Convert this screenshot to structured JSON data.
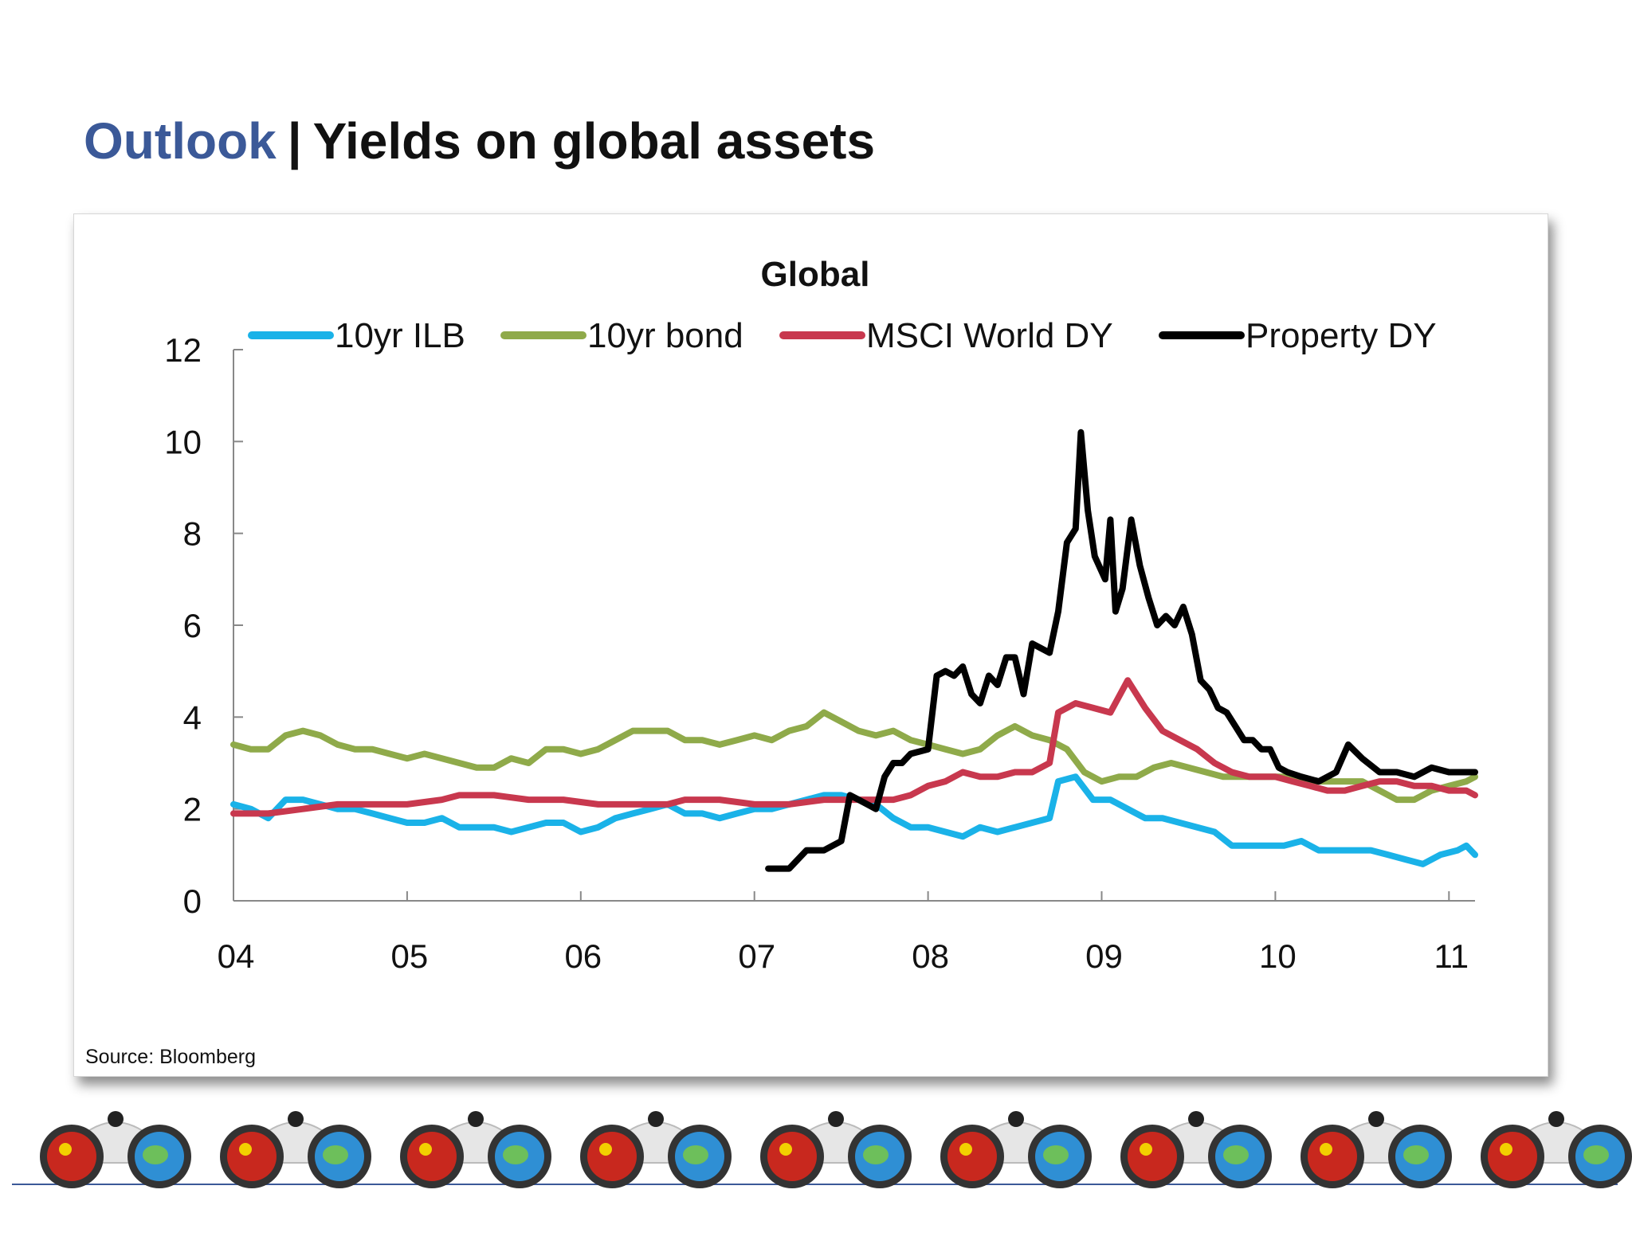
{
  "header": {
    "section": "Outlook",
    "separator": "|",
    "title": "Yields on global assets"
  },
  "source_note": "Source: Bloomberg",
  "footer": {
    "icon_count": 9,
    "icon_name": "binoculars-icon"
  },
  "colors": {
    "accent": "#3b5998",
    "ilb": "#1ab2e8",
    "bond": "#8faa4a",
    "msci": "#c8384e",
    "property": "#000000"
  },
  "chart_data": {
    "type": "line",
    "title": "Global",
    "xlabel": "",
    "ylabel": "",
    "x_tick_labels": [
      "04",
      "05",
      "06",
      "07",
      "08",
      "09",
      "10",
      "11"
    ],
    "x_ticks": [
      2004,
      2005,
      2006,
      2007,
      2008,
      2009,
      2010,
      2011
    ],
    "xlim": [
      2004,
      2011.15
    ],
    "ylim": [
      0,
      12
    ],
    "y_ticks": [
      0,
      2,
      4,
      6,
      8,
      10,
      12
    ],
    "legend_position": "top",
    "grid": false,
    "series": [
      {
        "name": "10yr ILB",
        "color": "#1ab2e8",
        "points": [
          [
            2004.0,
            2.1
          ],
          [
            2004.1,
            2.0
          ],
          [
            2004.2,
            1.8
          ],
          [
            2004.3,
            2.2
          ],
          [
            2004.4,
            2.2
          ],
          [
            2004.5,
            2.1
          ],
          [
            2004.6,
            2.0
          ],
          [
            2004.7,
            2.0
          ],
          [
            2004.8,
            1.9
          ],
          [
            2004.9,
            1.8
          ],
          [
            2005.0,
            1.7
          ],
          [
            2005.1,
            1.7
          ],
          [
            2005.2,
            1.8
          ],
          [
            2005.3,
            1.6
          ],
          [
            2005.4,
            1.6
          ],
          [
            2005.5,
            1.6
          ],
          [
            2005.6,
            1.5
          ],
          [
            2005.7,
            1.6
          ],
          [
            2005.8,
            1.7
          ],
          [
            2005.9,
            1.7
          ],
          [
            2006.0,
            1.5
          ],
          [
            2006.1,
            1.6
          ],
          [
            2006.2,
            1.8
          ],
          [
            2006.3,
            1.9
          ],
          [
            2006.4,
            2.0
          ],
          [
            2006.5,
            2.1
          ],
          [
            2006.6,
            1.9
          ],
          [
            2006.7,
            1.9
          ],
          [
            2006.8,
            1.8
          ],
          [
            2006.9,
            1.9
          ],
          [
            2007.0,
            2.0
          ],
          [
            2007.1,
            2.0
          ],
          [
            2007.2,
            2.1
          ],
          [
            2007.3,
            2.2
          ],
          [
            2007.4,
            2.3
          ],
          [
            2007.5,
            2.3
          ],
          [
            2007.6,
            2.2
          ],
          [
            2007.7,
            2.1
          ],
          [
            2007.8,
            1.8
          ],
          [
            2007.9,
            1.6
          ],
          [
            2008.0,
            1.6
          ],
          [
            2008.1,
            1.5
          ],
          [
            2008.2,
            1.4
          ],
          [
            2008.3,
            1.6
          ],
          [
            2008.4,
            1.5
          ],
          [
            2008.5,
            1.6
          ],
          [
            2008.6,
            1.7
          ],
          [
            2008.7,
            1.8
          ],
          [
            2008.75,
            2.6
          ],
          [
            2008.85,
            2.7
          ],
          [
            2008.95,
            2.2
          ],
          [
            2009.05,
            2.2
          ],
          [
            2009.15,
            2.0
          ],
          [
            2009.25,
            1.8
          ],
          [
            2009.35,
            1.8
          ],
          [
            2009.45,
            1.7
          ],
          [
            2009.55,
            1.6
          ],
          [
            2009.65,
            1.5
          ],
          [
            2009.75,
            1.2
          ],
          [
            2009.85,
            1.2
          ],
          [
            2009.95,
            1.2
          ],
          [
            2010.05,
            1.2
          ],
          [
            2010.15,
            1.3
          ],
          [
            2010.25,
            1.1
          ],
          [
            2010.35,
            1.1
          ],
          [
            2010.45,
            1.1
          ],
          [
            2010.55,
            1.1
          ],
          [
            2010.65,
            1.0
          ],
          [
            2010.75,
            0.9
          ],
          [
            2010.85,
            0.8
          ],
          [
            2010.95,
            1.0
          ],
          [
            2011.05,
            1.1
          ],
          [
            2011.1,
            1.2
          ],
          [
            2011.15,
            1.0
          ]
        ]
      },
      {
        "name": "10yr bond",
        "color": "#8faa4a",
        "points": [
          [
            2004.0,
            3.4
          ],
          [
            2004.1,
            3.3
          ],
          [
            2004.2,
            3.3
          ],
          [
            2004.3,
            3.6
          ],
          [
            2004.4,
            3.7
          ],
          [
            2004.5,
            3.6
          ],
          [
            2004.6,
            3.4
          ],
          [
            2004.7,
            3.3
          ],
          [
            2004.8,
            3.3
          ],
          [
            2004.9,
            3.2
          ],
          [
            2005.0,
            3.1
          ],
          [
            2005.1,
            3.2
          ],
          [
            2005.2,
            3.1
          ],
          [
            2005.3,
            3.0
          ],
          [
            2005.4,
            2.9
          ],
          [
            2005.5,
            2.9
          ],
          [
            2005.6,
            3.1
          ],
          [
            2005.7,
            3.0
          ],
          [
            2005.8,
            3.3
          ],
          [
            2005.9,
            3.3
          ],
          [
            2006.0,
            3.2
          ],
          [
            2006.1,
            3.3
          ],
          [
            2006.2,
            3.5
          ],
          [
            2006.3,
            3.7
          ],
          [
            2006.4,
            3.7
          ],
          [
            2006.5,
            3.7
          ],
          [
            2006.6,
            3.5
          ],
          [
            2006.7,
            3.5
          ],
          [
            2006.8,
            3.4
          ],
          [
            2006.9,
            3.5
          ],
          [
            2007.0,
            3.6
          ],
          [
            2007.1,
            3.5
          ],
          [
            2007.2,
            3.7
          ],
          [
            2007.3,
            3.8
          ],
          [
            2007.4,
            4.1
          ],
          [
            2007.5,
            3.9
          ],
          [
            2007.6,
            3.7
          ],
          [
            2007.7,
            3.6
          ],
          [
            2007.8,
            3.7
          ],
          [
            2007.9,
            3.5
          ],
          [
            2008.0,
            3.4
          ],
          [
            2008.1,
            3.3
          ],
          [
            2008.2,
            3.2
          ],
          [
            2008.3,
            3.3
          ],
          [
            2008.4,
            3.6
          ],
          [
            2008.5,
            3.8
          ],
          [
            2008.6,
            3.6
          ],
          [
            2008.7,
            3.5
          ],
          [
            2008.8,
            3.3
          ],
          [
            2008.9,
            2.8
          ],
          [
            2009.0,
            2.6
          ],
          [
            2009.1,
            2.7
          ],
          [
            2009.2,
            2.7
          ],
          [
            2009.3,
            2.9
          ],
          [
            2009.4,
            3.0
          ],
          [
            2009.5,
            2.9
          ],
          [
            2009.6,
            2.8
          ],
          [
            2009.7,
            2.7
          ],
          [
            2009.8,
            2.7
          ],
          [
            2009.9,
            2.7
          ],
          [
            2010.0,
            2.7
          ],
          [
            2010.1,
            2.7
          ],
          [
            2010.2,
            2.6
          ],
          [
            2010.3,
            2.6
          ],
          [
            2010.4,
            2.6
          ],
          [
            2010.5,
            2.6
          ],
          [
            2010.6,
            2.4
          ],
          [
            2010.7,
            2.2
          ],
          [
            2010.8,
            2.2
          ],
          [
            2010.9,
            2.4
          ],
          [
            2011.0,
            2.5
          ],
          [
            2011.1,
            2.6
          ],
          [
            2011.15,
            2.7
          ]
        ]
      },
      {
        "name": "MSCI World DY",
        "color": "#c8384e",
        "points": [
          [
            2004.0,
            1.9
          ],
          [
            2004.2,
            1.9
          ],
          [
            2004.4,
            2.0
          ],
          [
            2004.6,
            2.1
          ],
          [
            2004.8,
            2.1
          ],
          [
            2005.0,
            2.1
          ],
          [
            2005.2,
            2.2
          ],
          [
            2005.3,
            2.3
          ],
          [
            2005.5,
            2.3
          ],
          [
            2005.7,
            2.2
          ],
          [
            2005.9,
            2.2
          ],
          [
            2006.1,
            2.1
          ],
          [
            2006.3,
            2.1
          ],
          [
            2006.5,
            2.1
          ],
          [
            2006.6,
            2.2
          ],
          [
            2006.8,
            2.2
          ],
          [
            2007.0,
            2.1
          ],
          [
            2007.2,
            2.1
          ],
          [
            2007.4,
            2.2
          ],
          [
            2007.6,
            2.2
          ],
          [
            2007.8,
            2.2
          ],
          [
            2007.9,
            2.3
          ],
          [
            2008.0,
            2.5
          ],
          [
            2008.1,
            2.6
          ],
          [
            2008.2,
            2.8
          ],
          [
            2008.3,
            2.7
          ],
          [
            2008.4,
            2.7
          ],
          [
            2008.5,
            2.8
          ],
          [
            2008.6,
            2.8
          ],
          [
            2008.7,
            3.0
          ],
          [
            2008.75,
            4.1
          ],
          [
            2008.85,
            4.3
          ],
          [
            2008.95,
            4.2
          ],
          [
            2009.05,
            4.1
          ],
          [
            2009.15,
            4.8
          ],
          [
            2009.25,
            4.2
          ],
          [
            2009.35,
            3.7
          ],
          [
            2009.45,
            3.5
          ],
          [
            2009.55,
            3.3
          ],
          [
            2009.65,
            3.0
          ],
          [
            2009.75,
            2.8
          ],
          [
            2009.85,
            2.7
          ],
          [
            2010.0,
            2.7
          ],
          [
            2010.1,
            2.6
          ],
          [
            2010.2,
            2.5
          ],
          [
            2010.3,
            2.4
          ],
          [
            2010.4,
            2.4
          ],
          [
            2010.5,
            2.5
          ],
          [
            2010.6,
            2.6
          ],
          [
            2010.7,
            2.6
          ],
          [
            2010.8,
            2.5
          ],
          [
            2010.9,
            2.5
          ],
          [
            2011.0,
            2.4
          ],
          [
            2011.1,
            2.4
          ],
          [
            2011.15,
            2.3
          ]
        ]
      },
      {
        "name": "Property DY",
        "color": "#000000",
        "points": [
          [
            2007.08,
            0.7
          ],
          [
            2007.12,
            0.7
          ],
          [
            2007.2,
            0.7
          ],
          [
            2007.3,
            1.1
          ],
          [
            2007.4,
            1.1
          ],
          [
            2007.5,
            1.3
          ],
          [
            2007.55,
            2.3
          ],
          [
            2007.6,
            2.2
          ],
          [
            2007.65,
            2.1
          ],
          [
            2007.7,
            2.0
          ],
          [
            2007.75,
            2.7
          ],
          [
            2007.8,
            3.0
          ],
          [
            2007.85,
            3.0
          ],
          [
            2007.9,
            3.2
          ],
          [
            2008.0,
            3.3
          ],
          [
            2008.05,
            4.9
          ],
          [
            2008.1,
            5.0
          ],
          [
            2008.15,
            4.9
          ],
          [
            2008.2,
            5.1
          ],
          [
            2008.25,
            4.5
          ],
          [
            2008.3,
            4.3
          ],
          [
            2008.35,
            4.9
          ],
          [
            2008.4,
            4.7
          ],
          [
            2008.45,
            5.3
          ],
          [
            2008.5,
            5.3
          ],
          [
            2008.55,
            4.5
          ],
          [
            2008.6,
            5.6
          ],
          [
            2008.65,
            5.5
          ],
          [
            2008.7,
            5.4
          ],
          [
            2008.75,
            6.3
          ],
          [
            2008.8,
            7.8
          ],
          [
            2008.85,
            8.1
          ],
          [
            2008.88,
            10.2
          ],
          [
            2008.92,
            8.5
          ],
          [
            2008.96,
            7.5
          ],
          [
            2009.02,
            7.0
          ],
          [
            2009.05,
            8.3
          ],
          [
            2009.08,
            6.3
          ],
          [
            2009.12,
            6.8
          ],
          [
            2009.17,
            8.3
          ],
          [
            2009.22,
            7.3
          ],
          [
            2009.27,
            6.6
          ],
          [
            2009.32,
            6.0
          ],
          [
            2009.37,
            6.2
          ],
          [
            2009.42,
            6.0
          ],
          [
            2009.47,
            6.4
          ],
          [
            2009.52,
            5.8
          ],
          [
            2009.57,
            4.8
          ],
          [
            2009.62,
            4.6
          ],
          [
            2009.67,
            4.2
          ],
          [
            2009.72,
            4.1
          ],
          [
            2009.77,
            3.8
          ],
          [
            2009.82,
            3.5
          ],
          [
            2009.87,
            3.5
          ],
          [
            2009.92,
            3.3
          ],
          [
            2009.97,
            3.3
          ],
          [
            2010.02,
            2.9
          ],
          [
            2010.07,
            2.8
          ],
          [
            2010.15,
            2.7
          ],
          [
            2010.25,
            2.6
          ],
          [
            2010.35,
            2.8
          ],
          [
            2010.42,
            3.4
          ],
          [
            2010.5,
            3.1
          ],
          [
            2010.6,
            2.8
          ],
          [
            2010.7,
            2.8
          ],
          [
            2010.8,
            2.7
          ],
          [
            2010.9,
            2.9
          ],
          [
            2011.0,
            2.8
          ],
          [
            2011.15,
            2.8
          ]
        ]
      }
    ]
  }
}
